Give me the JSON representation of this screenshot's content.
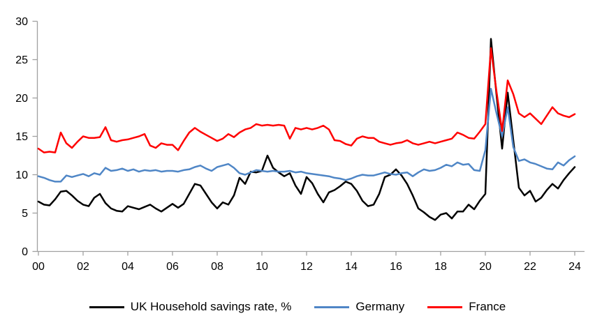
{
  "chart_data": {
    "type": "line",
    "title": "",
    "xlabel": "",
    "ylabel": "",
    "frequency": "quarterly",
    "x_start_year": 2000,
    "x_step_years": 0.25,
    "x_axis": {
      "tick_labels": [
        "00",
        "02",
        "04",
        "06",
        "08",
        "10",
        "12",
        "14",
        "16",
        "18",
        "20",
        "22",
        "24"
      ],
      "tick_start_year": 2000,
      "tick_interval_years": 2
    },
    "y_axis": {
      "min": 0,
      "max": 30,
      "ticks": [
        0,
        5,
        10,
        15,
        20,
        25,
        30
      ]
    },
    "grid": false,
    "legend_position": "bottom",
    "series": [
      {
        "name": "UK Household savings rate, %",
        "color": "#000000",
        "values": [
          6.5,
          6.1,
          6.0,
          6.8,
          7.8,
          7.9,
          7.3,
          6.6,
          6.1,
          5.9,
          7.0,
          7.5,
          6.3,
          5.6,
          5.3,
          5.2,
          5.9,
          5.7,
          5.5,
          5.8,
          6.1,
          5.6,
          5.2,
          5.7,
          6.2,
          5.7,
          6.2,
          7.5,
          8.8,
          8.6,
          7.5,
          6.4,
          5.6,
          6.4,
          6.1,
          7.3,
          9.6,
          8.8,
          10.4,
          10.3,
          10.5,
          12.5,
          10.9,
          10.3,
          9.8,
          10.2,
          8.6,
          7.5,
          9.7,
          8.9,
          7.5,
          6.4,
          7.7,
          8.0,
          8.5,
          9.1,
          8.8,
          7.9,
          6.6,
          5.9,
          6.1,
          7.5,
          9.7,
          10.0,
          10.7,
          9.9,
          8.8,
          7.3,
          5.6,
          5.1,
          4.5,
          4.1,
          4.8,
          5.0,
          4.3,
          5.2,
          5.2,
          6.1,
          5.5,
          6.6,
          7.5,
          27.7,
          20.4,
          13.4,
          20.7,
          14.5,
          8.3,
          7.3,
          7.9,
          6.5,
          7.0,
          8.0,
          8.8,
          8.2,
          9.3,
          10.2,
          11.0
        ]
      },
      {
        "name": "Germany",
        "color": "#4f86c6",
        "values": [
          9.8,
          9.6,
          9.3,
          9.1,
          9.1,
          9.9,
          9.7,
          9.9,
          10.1,
          9.8,
          10.2,
          10.0,
          10.9,
          10.5,
          10.6,
          10.8,
          10.5,
          10.7,
          10.4,
          10.6,
          10.5,
          10.6,
          10.4,
          10.5,
          10.5,
          10.4,
          10.6,
          10.7,
          11.0,
          11.2,
          10.8,
          10.5,
          11.0,
          11.2,
          11.4,
          10.9,
          10.2,
          10.0,
          10.3,
          10.6,
          10.5,
          10.4,
          10.5,
          10.4,
          10.4,
          10.5,
          10.3,
          10.4,
          10.2,
          10.1,
          10.0,
          9.9,
          9.8,
          9.6,
          9.5,
          9.3,
          9.5,
          9.8,
          10.0,
          9.9,
          9.9,
          10.1,
          10.3,
          10.1,
          10.0,
          10.2,
          10.3,
          9.8,
          10.3,
          10.7,
          10.5,
          10.6,
          10.9,
          11.3,
          11.1,
          11.6,
          11.3,
          11.4,
          10.6,
          10.5,
          13.2,
          21.2,
          18.0,
          15.0,
          18.8,
          13.6,
          11.8,
          12.0,
          11.6,
          11.4,
          11.1,
          10.8,
          10.7,
          11.6,
          11.2,
          11.9,
          12.4
        ]
      },
      {
        "name": "France",
        "color": "#ff0000",
        "values": [
          13.4,
          12.9,
          13.0,
          12.9,
          15.5,
          14.1,
          13.5,
          14.3,
          15.0,
          14.8,
          14.8,
          14.9,
          16.2,
          14.5,
          14.3,
          14.5,
          14.6,
          14.8,
          15.0,
          15.3,
          13.8,
          13.5,
          14.1,
          13.9,
          13.9,
          13.2,
          14.4,
          15.5,
          16.1,
          15.6,
          15.2,
          14.8,
          14.4,
          14.7,
          15.3,
          14.9,
          15.5,
          15.9,
          16.1,
          16.6,
          16.4,
          16.5,
          16.4,
          16.5,
          16.4,
          14.7,
          16.1,
          15.9,
          16.1,
          15.9,
          16.1,
          16.4,
          15.9,
          14.5,
          14.4,
          14.0,
          13.8,
          14.7,
          15.0,
          14.8,
          14.8,
          14.3,
          14.1,
          13.9,
          14.1,
          14.2,
          14.5,
          14.1,
          13.9,
          14.1,
          14.3,
          14.1,
          14.3,
          14.5,
          14.7,
          15.5,
          15.2,
          14.8,
          14.7,
          15.6,
          16.6,
          26.5,
          20.8,
          15.7,
          22.3,
          20.5,
          18.0,
          17.5,
          18.0,
          17.3,
          16.6,
          17.7,
          18.8,
          18.0,
          17.7,
          17.5,
          17.9
        ]
      }
    ]
  },
  "legend": {
    "items": [
      {
        "label": "UK Household savings rate, %",
        "color": "#000000"
      },
      {
        "label": "Germany",
        "color": "#4f86c6"
      },
      {
        "label": "France",
        "color": "#ff0000"
      }
    ]
  },
  "style": {
    "axis_color": "#a0a0a0",
    "label_color": "#000000"
  }
}
